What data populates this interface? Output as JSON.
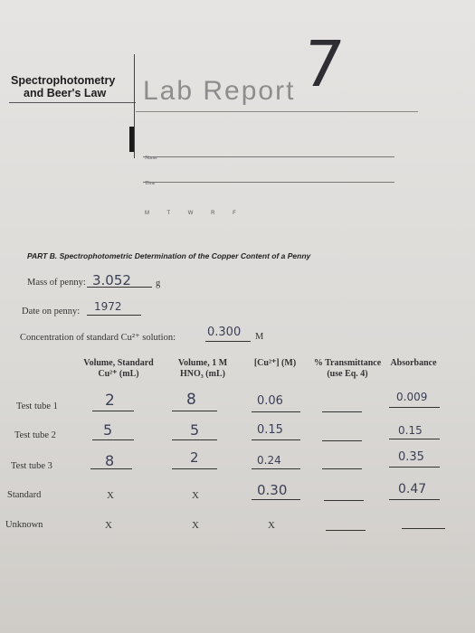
{
  "header": {
    "topic_line1": "Spectrophotometry",
    "topic_line2": "and Beer's Law",
    "title": "Lab Report",
    "report_number": "7",
    "name_label": "Name",
    "time_label": "Time",
    "days": "M T W R F"
  },
  "part": {
    "title": "PART B.  Spectrophotometric Determination of the Copper Content of a Penny"
  },
  "fields": {
    "mass_label": "Mass of penny:",
    "mass_value": "3.052",
    "mass_unit": "g",
    "date_label": "Date on penny:",
    "date_value": "1972",
    "conc_label": "Concentration of standard Cu²⁺ solution:",
    "conc_value": "0.300",
    "conc_unit": "M"
  },
  "table": {
    "headers": {
      "vol_std_1": "Volume, Standard",
      "vol_std_2": "Cu²⁺ (mL)",
      "vol_hno_1": "Volume, 1 M",
      "vol_hno_2": "HNO₃ (mL)",
      "conc": "[Cu²⁺] (M)",
      "trans_1": "% Transmittance",
      "trans_2": "(use Eq. 4)",
      "abs": "Absorbance"
    },
    "rows": [
      {
        "label": "Test tube 1",
        "vol_std": "2",
        "vol_hno": "8",
        "conc": "0.06",
        "abs": "0.009"
      },
      {
        "label": "Test tube 2",
        "vol_std": "5",
        "vol_hno": "5",
        "conc": "0.15",
        "abs": "0.15"
      },
      {
        "label": "Test tube 3",
        "vol_std": "8",
        "vol_hno": "2",
        "conc": "0.24",
        "abs": "0.35"
      },
      {
        "label": "Standard",
        "vol_std": "X",
        "vol_hno": "X",
        "conc": "0.30",
        "abs": "0.47"
      },
      {
        "label": "Unknown",
        "vol_std": "X",
        "vol_hno": "X",
        "conc": "X",
        "abs": ""
      }
    ]
  }
}
